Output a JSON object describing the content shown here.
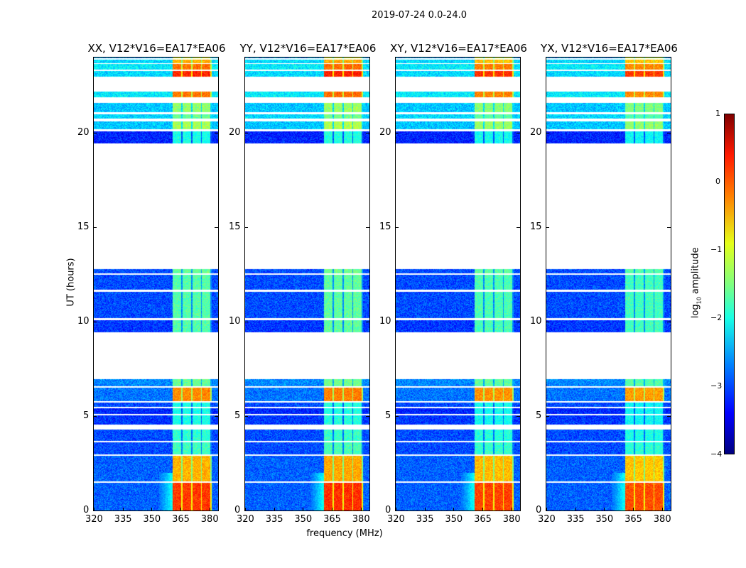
{
  "chart_data": {
    "type": "heatmap",
    "title": "2019-07-24 0.0-24.0",
    "xlabel": "frequency (MHz)",
    "ylabel": "UT (hours)",
    "xlim": [
      320,
      384.5
    ],
    "ylim": [
      0,
      24
    ],
    "xticks": [
      "320",
      "335",
      "350",
      "365",
      "380"
    ],
    "xtick_values": [
      320,
      335,
      350,
      365,
      380
    ],
    "yticks": [
      "0",
      "5",
      "10",
      "15",
      "20"
    ],
    "ytick_values": [
      0,
      5,
      10,
      15,
      20
    ],
    "panels": [
      {
        "title": "XX, V12*V16=EA17*EA06",
        "rfi_offset": 0
      },
      {
        "title": "YY, V12*V16=EA17*EA06",
        "rfi_offset": 0.05
      },
      {
        "title": "XY, V12*V16=EA17*EA06",
        "rfi_offset": -0.05
      },
      {
        "title": "YX, V12*V16=EA17*EA06",
        "rfi_offset": -0.1
      }
    ],
    "rfi_channels_mhz": [
      [
        361,
        365.3
      ],
      [
        365.9,
        370.5
      ],
      [
        371.1,
        375.5
      ],
      [
        376.1,
        380.5
      ]
    ],
    "time_segments": [
      {
        "hours": [
          0,
          1.45
        ],
        "rfi_log": 0.1,
        "bg_log": -2.9
      },
      {
        "hours": [
          1.55,
          2.9
        ],
        "rfi_log": -0.5,
        "bg_log": -2.9
      },
      {
        "hours": [
          2.98,
          3.6
        ],
        "rfi_log": -1.8,
        "bg_log": -3.0
      },
      {
        "hours": [
          3.68,
          4.3
        ],
        "rfi_log": -1.9,
        "bg_log": -3.0
      },
      {
        "hours": [
          4.55,
          5.05
        ],
        "rfi_log": -2.0,
        "bg_log": -3.1
      },
      {
        "hours": [
          5.1,
          5.4
        ],
        "rfi_log": -2.0,
        "bg_log": -3.2
      },
      {
        "hours": [
          5.5,
          5.7
        ],
        "rfi_log": -2.0,
        "bg_log": -3.0
      },
      {
        "hours": [
          5.8,
          6.5
        ],
        "rfi_log": -0.3,
        "bg_log": -2.8
      },
      {
        "hours": [
          6.58,
          6.95
        ],
        "rfi_log": -1.6,
        "bg_log": -2.7
      },
      {
        "hours": [
          9.45,
          10.1
        ],
        "rfi_log": -1.7,
        "bg_log": -3.1
      },
      {
        "hours": [
          10.2,
          11.6
        ],
        "rfi_log": -1.7,
        "bg_log": -3.0
      },
      {
        "hours": [
          11.7,
          12.5
        ],
        "rfi_log": -1.7,
        "bg_log": -3.0
      },
      {
        "hours": [
          12.55,
          12.8
        ],
        "rfi_log": -1.6,
        "bg_log": -3.0
      },
      {
        "hours": [
          19.45,
          20.1
        ],
        "rfi_log": -2.0,
        "bg_log": -3.2
      },
      {
        "hours": [
          20.2,
          20.6
        ],
        "rfi_log": -1.3,
        "bg_log": -2.4
      },
      {
        "hours": [
          20.75,
          21.0
        ],
        "rfi_log": -1.6,
        "bg_log": -2.3
      },
      {
        "hours": [
          21.1,
          21.6
        ],
        "rfi_log": -1.4,
        "bg_log": -2.4
      },
      {
        "hours": [
          21.9,
          22.2
        ],
        "rfi_log": -0.2,
        "bg_log": -2.2
      },
      {
        "hours": [
          23.0,
          23.3
        ],
        "rfi_log": 0.2,
        "bg_log": -2.3
      },
      {
        "hours": [
          23.35,
          23.65
        ],
        "rfi_log": -0.2,
        "bg_log": -2.2
      },
      {
        "hours": [
          23.7,
          23.9
        ],
        "rfi_log": -0.5,
        "bg_log": -2.3
      },
      {
        "hours": [
          23.95,
          24
        ],
        "rfi_log": -1.0,
        "bg_log": -2.6
      }
    ],
    "colorbar": {
      "label": "log10 amplitude",
      "label_main": "log",
      "label_sub": "10",
      "label_rest": " amplitude",
      "range": [
        -4,
        1
      ],
      "ticks": [
        "1",
        "0",
        "−1",
        "−2",
        "−3",
        "−4"
      ],
      "tick_values": [
        1,
        0,
        -1,
        -2,
        -3,
        -4
      ],
      "colormap": "jet"
    }
  }
}
